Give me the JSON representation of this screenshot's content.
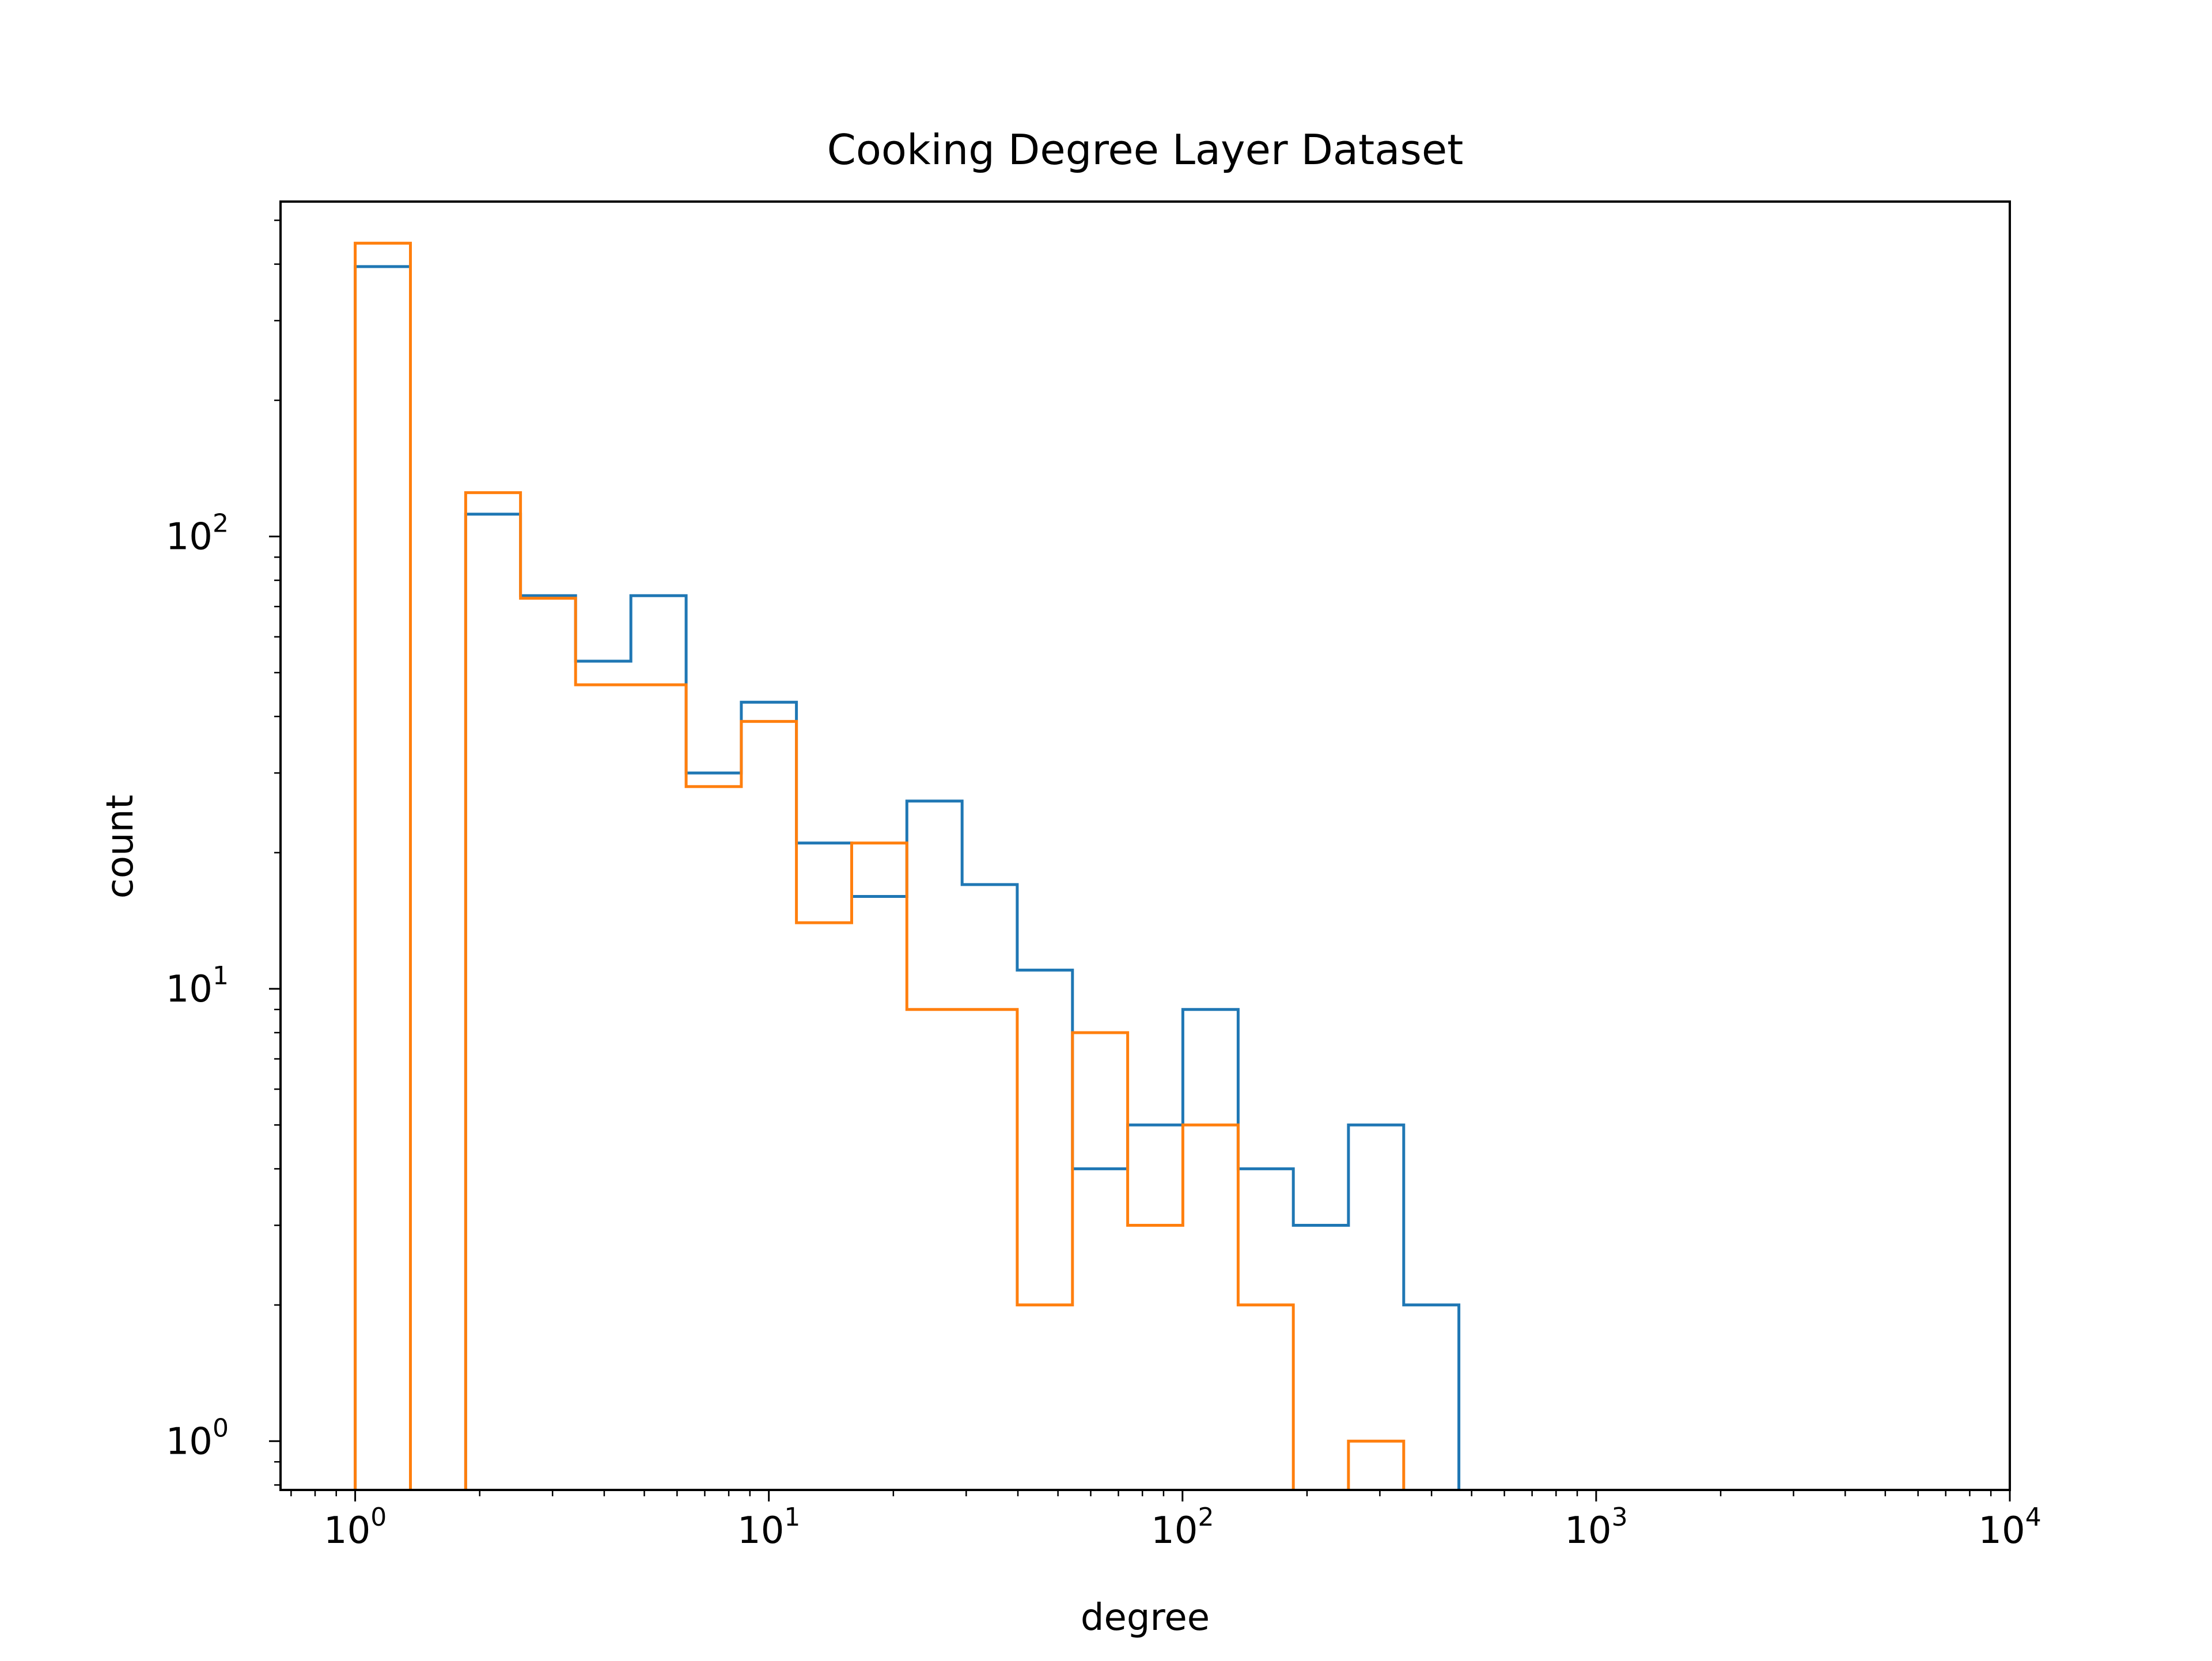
{
  "chart_data": {
    "type": "histogram",
    "title": "Cooking Degree Layer Dataset",
    "xlabel": "degree",
    "ylabel": "count",
    "xscale": "log",
    "yscale": "log",
    "xlim": [
      0.66,
      10000
    ],
    "ylim": [
      0.78,
      550
    ],
    "x_ticks": [
      {
        "value": 1,
        "base": "10",
        "exp": "0"
      },
      {
        "value": 10,
        "base": "10",
        "exp": "1"
      },
      {
        "value": 100,
        "base": "10",
        "exp": "2"
      },
      {
        "value": 1000,
        "base": "10",
        "exp": "3"
      },
      {
        "value": 10000,
        "base": "10",
        "exp": "4"
      }
    ],
    "y_ticks": [
      {
        "value": 1,
        "base": "10",
        "exp": "0"
      },
      {
        "value": 10,
        "base": "10",
        "exp": "1"
      },
      {
        "value": 100,
        "base": "10",
        "exp": "2"
      }
    ],
    "grid": false,
    "legend": "none",
    "bin_edges": [
      1,
      1.36,
      1.85,
      2.51,
      3.41,
      4.64,
      6.31,
      8.58,
      11.66,
      15.86,
      21.56,
      29.32,
      39.86,
      54.2,
      73.7,
      100.2,
      136.3,
      185.3,
      251.9,
      342.6,
      465.8
    ],
    "series": [
      {
        "color": "#1f77b4",
        "counts": [
          395,
          0,
          112,
          74,
          53,
          74,
          30,
          43,
          21,
          16,
          26,
          17,
          11,
          4,
          5,
          9,
          4,
          3,
          5,
          2
        ]
      },
      {
        "color": "#ff7f0e",
        "counts": [
          445,
          0,
          125,
          73,
          47,
          47,
          28,
          39,
          14,
          21,
          9,
          9,
          2,
          8,
          3,
          5,
          2,
          0,
          1,
          0
        ]
      }
    ]
  }
}
